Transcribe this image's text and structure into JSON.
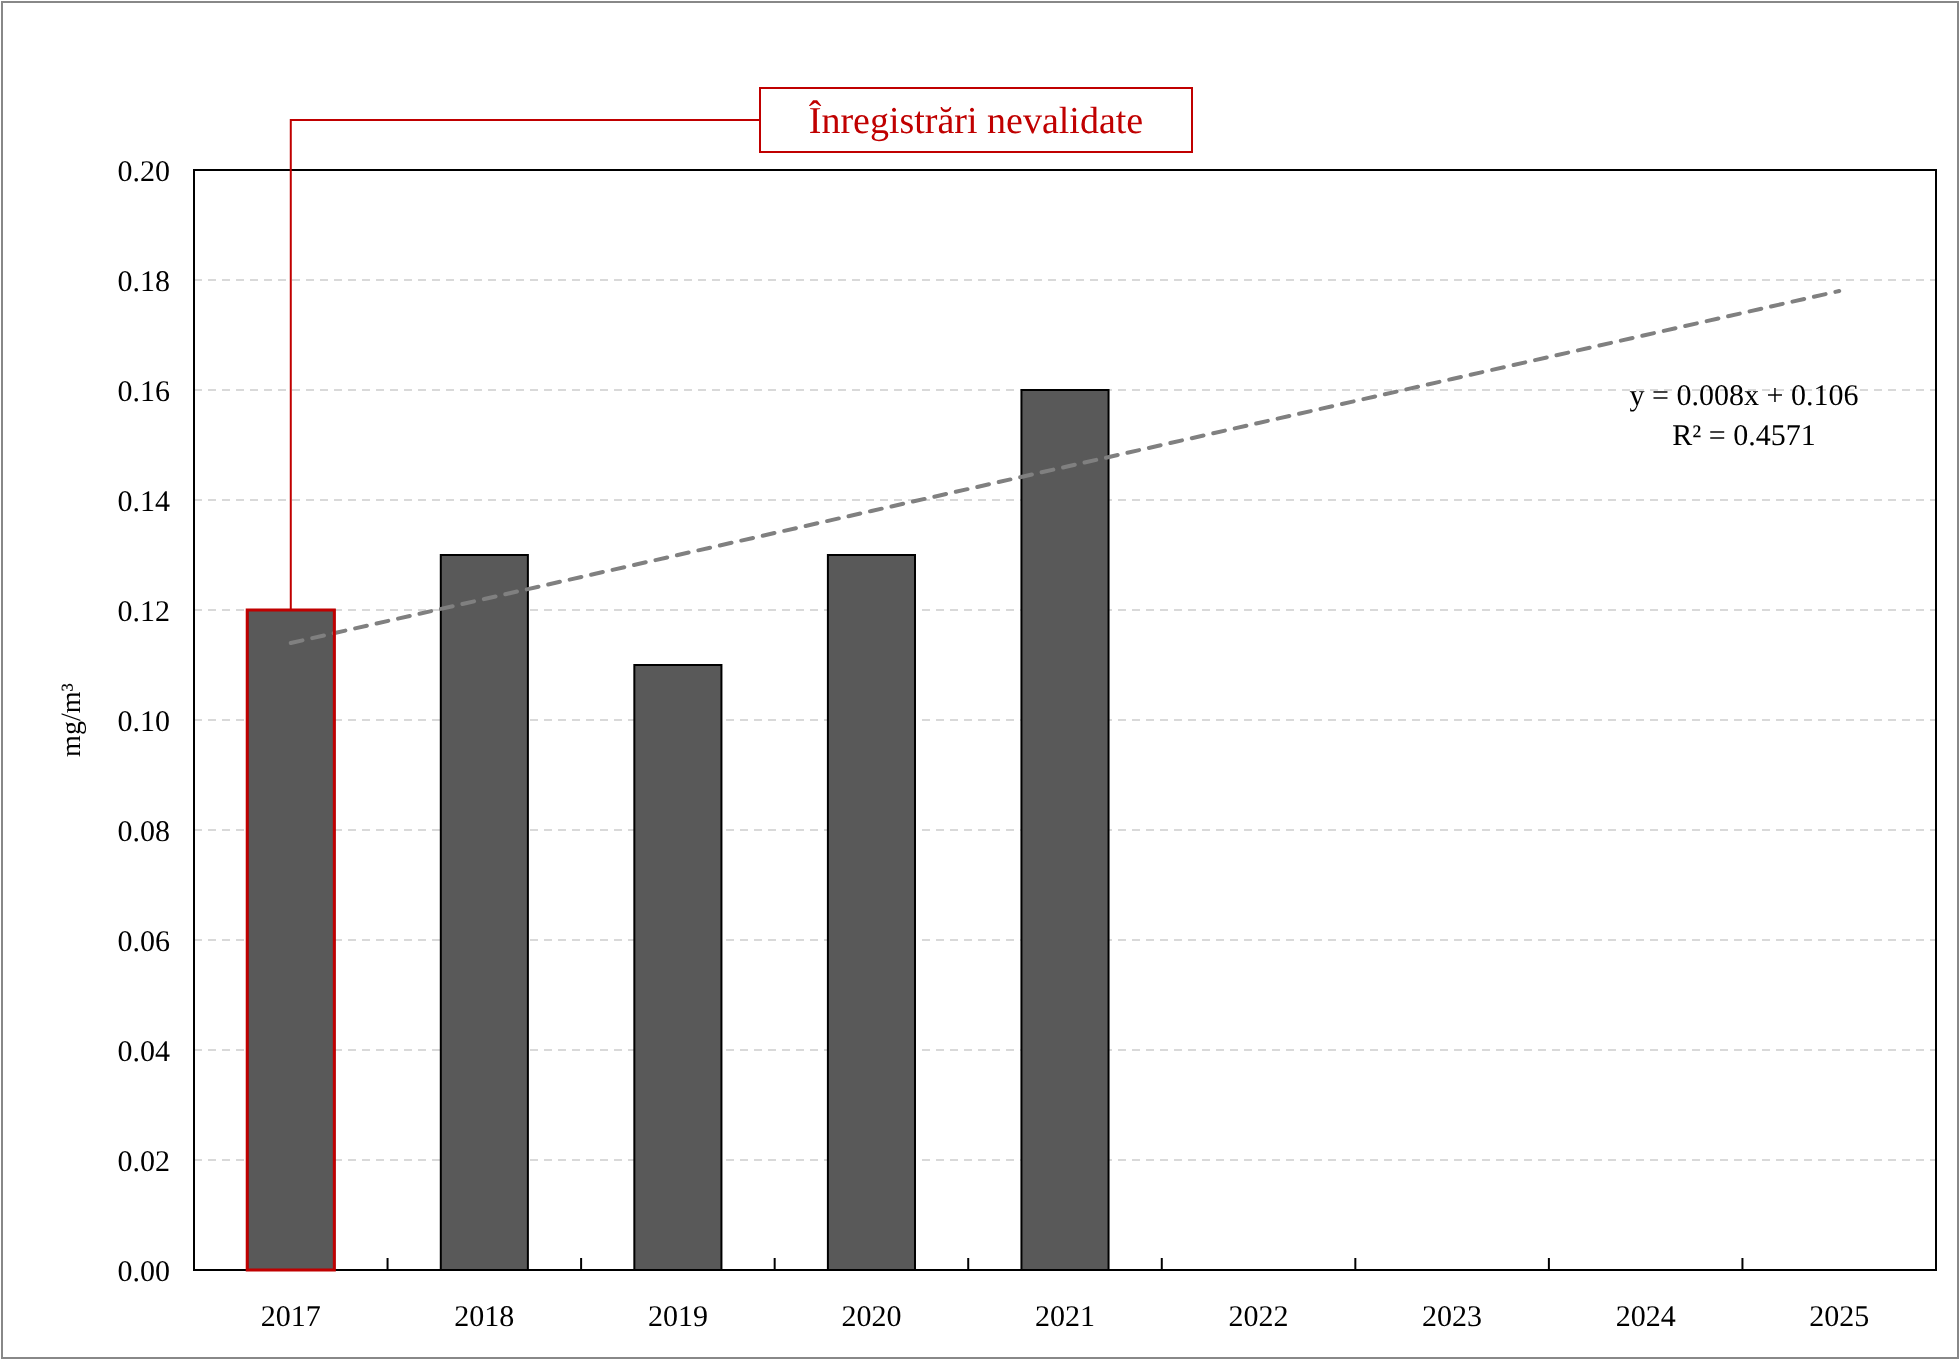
{
  "chart_data": {
    "type": "bar",
    "ylabel": "mg/m³",
    "categories": [
      "2017",
      "2018",
      "2019",
      "2020",
      "2021",
      "2022",
      "2023",
      "2024",
      "2025"
    ],
    "series": [
      {
        "color": "#595959",
        "values": [
          0.12,
          0.13,
          0.11,
          0.13,
          0.16,
          null,
          null,
          null,
          null
        ]
      },
      {
        "type": "line",
        "color": "#808080",
        "values": [
          0.114,
          0.122,
          0.13,
          0.138,
          0.146,
          0.154,
          0.162,
          0.17,
          0.178
        ],
        "line_style": "dashed"
      }
    ],
    "ylim": [
      0,
      0.2
    ],
    "yticks": [
      {
        "value": 0,
        "label": "0.00"
      },
      {
        "value": 0.02,
        "label": "0.02"
      },
      {
        "value": 0.04,
        "label": "0.04"
      },
      {
        "value": 0.06,
        "label": "0.06"
      },
      {
        "value": 0.08,
        "label": "0.08"
      },
      {
        "value": 0.1,
        "label": "0.10"
      },
      {
        "value": 0.12,
        "label": "0.12"
      },
      {
        "value": 0.14,
        "label": "0.14"
      },
      {
        "value": 0.16,
        "label": "0.16"
      },
      {
        "value": 0.18,
        "label": "0.18"
      },
      {
        "value": 0.2,
        "label": "0.20"
      }
    ],
    "grid": "y",
    "annotations": [
      {
        "text": "Înregistrări nevalidate",
        "x": "2017",
        "y": 0.12
      },
      "y = 0.008x + 0.106",
      "R² = 0.4571"
    ]
  }
}
